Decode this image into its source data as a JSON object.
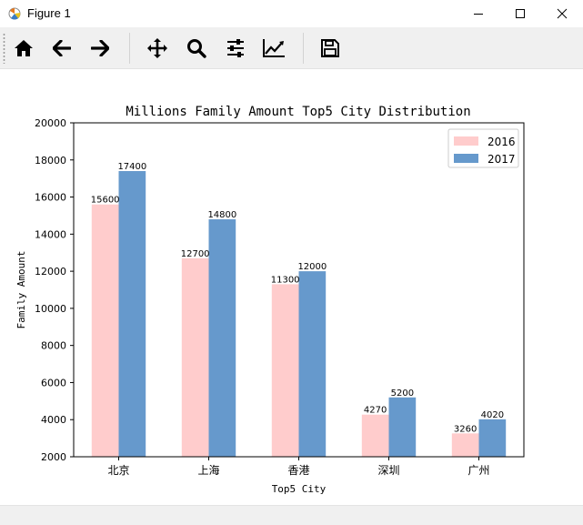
{
  "window": {
    "title": "Figure 1",
    "icon": "matplotlib-icon"
  },
  "toolbar": {
    "items": [
      {
        "name": "home-icon",
        "tooltip": "Reset original view"
      },
      {
        "name": "back-arrow-icon",
        "tooltip": "Back"
      },
      {
        "name": "forward-arrow-icon",
        "tooltip": "Forward"
      },
      {
        "name": "pan-icon",
        "tooltip": "Pan"
      },
      {
        "name": "zoom-icon",
        "tooltip": "Zoom"
      },
      {
        "name": "subplots-icon",
        "tooltip": "Configure subplots"
      },
      {
        "name": "edit-axis-icon",
        "tooltip": "Edit axis"
      },
      {
        "name": "save-icon",
        "tooltip": "Save"
      }
    ]
  },
  "chart_data": {
    "type": "bar",
    "title": "Millions Family Amount Top5 City Distribution",
    "xlabel": "Top5 City",
    "ylabel": "Family Amount",
    "categories": [
      "北京",
      "上海",
      "香港",
      "深圳",
      "广州"
    ],
    "series": [
      {
        "name": "2016",
        "values": [
          15600,
          12700,
          11300,
          4270,
          3260
        ],
        "color": "#ffcccc"
      },
      {
        "name": "2017",
        "values": [
          17400,
          14800,
          12000,
          5200,
          4020
        ],
        "color": "#6699cc"
      }
    ],
    "ylim": [
      2000,
      20000
    ],
    "yticks": [
      2000,
      4000,
      6000,
      8000,
      10000,
      12000,
      14000,
      16000,
      18000,
      20000
    ],
    "grid": false,
    "legend": "top-right"
  }
}
